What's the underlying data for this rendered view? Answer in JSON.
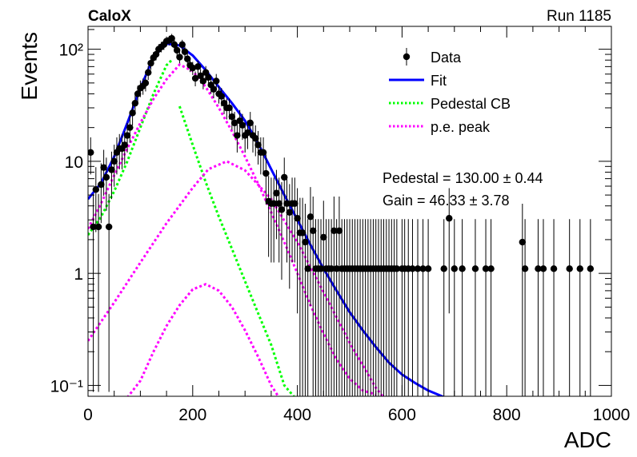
{
  "header": {
    "left": "CaloX",
    "right": "Run 1185"
  },
  "legend": {
    "items": [
      {
        "key": "data",
        "label": "Data",
        "color": "#000000",
        "style": "marker"
      },
      {
        "key": "fit",
        "label": "Fit",
        "color": "#0000ff",
        "style": "solid"
      },
      {
        "key": "ped",
        "label": "Pedestal CB",
        "color": "#00ff00",
        "style": "dotted"
      },
      {
        "key": "pe",
        "label": "p.e. peak",
        "color": "#ff00ff",
        "style": "dotted"
      }
    ],
    "placement": "top-right"
  },
  "fit_results": {
    "pedestal": "Pedestal = 130.00 ± 0.44",
    "gain": "Gain = 46.33 ± 3.78"
  },
  "chart_data": {
    "type": "scatter",
    "title": "",
    "xlabel": "ADC",
    "ylabel": "Events",
    "xlim": [
      0,
      1000
    ],
    "ylim": [
      0.08,
      160
    ],
    "yscale": "log",
    "xticks": [
      0,
      200,
      400,
      600,
      800,
      1000
    ],
    "yticks": [
      {
        "value": 0.1,
        "label": "10⁻¹"
      },
      {
        "value": 1,
        "label": "1"
      },
      {
        "value": 10,
        "label": "10"
      },
      {
        "value": 100,
        "label": "10²"
      }
    ],
    "grid": false,
    "series": [
      {
        "name": "Data",
        "kind": "points",
        "color": "#000000",
        "points": [
          [
            5,
            12
          ],
          [
            10,
            2.6
          ],
          [
            15,
            5.6
          ],
          [
            20,
            2.6
          ],
          [
            25,
            6.2
          ],
          [
            30,
            8.8
          ],
          [
            35,
            7.2
          ],
          [
            40,
            2.6
          ],
          [
            45,
            8.4
          ],
          [
            50,
            10
          ],
          [
            55,
            12
          ],
          [
            60,
            13
          ],
          [
            65,
            13
          ],
          [
            70,
            14
          ],
          [
            75,
            17
          ],
          [
            80,
            20
          ],
          [
            85,
            27
          ],
          [
            90,
            33
          ],
          [
            95,
            40
          ],
          [
            100,
            45
          ],
          [
            105,
            47
          ],
          [
            110,
            50
          ],
          [
            115,
            62
          ],
          [
            120,
            75
          ],
          [
            125,
            84
          ],
          [
            130,
            90
          ],
          [
            135,
            100
          ],
          [
            140,
            105
          ],
          [
            145,
            110
          ],
          [
            150,
            118
          ],
          [
            155,
            120
          ],
          [
            160,
            125
          ],
          [
            165,
            110
          ],
          [
            170,
            98
          ],
          [
            175,
            85
          ],
          [
            180,
            110
          ],
          [
            185,
            95
          ],
          [
            190,
            82
          ],
          [
            195,
            72
          ],
          [
            200,
            68
          ],
          [
            205,
            55
          ],
          [
            210,
            70
          ],
          [
            215,
            58
          ],
          [
            220,
            52
          ],
          [
            225,
            62
          ],
          [
            230,
            56
          ],
          [
            235,
            48
          ],
          [
            240,
            44
          ],
          [
            245,
            52
          ],
          [
            250,
            40
          ],
          [
            255,
            38
          ],
          [
            260,
            33
          ],
          [
            265,
            30
          ],
          [
            270,
            30
          ],
          [
            275,
            25
          ],
          [
            280,
            22
          ],
          [
            285,
            17
          ],
          [
            290,
            23
          ],
          [
            295,
            21
          ],
          [
            300,
            17
          ],
          [
            305,
            18
          ],
          [
            310,
            22
          ],
          [
            315,
            17
          ],
          [
            320,
            16
          ],
          [
            325,
            14
          ],
          [
            330,
            12
          ],
          [
            335,
            12
          ],
          [
            340,
            7.8
          ],
          [
            345,
            4.4
          ],
          [
            350,
            4.2
          ],
          [
            355,
            4.2
          ],
          [
            360,
            5.2
          ],
          [
            365,
            4.2
          ],
          [
            370,
            3.7
          ],
          [
            375,
            7.2
          ],
          [
            380,
            4.2
          ],
          [
            385,
            3.5
          ],
          [
            390,
            4.2
          ],
          [
            395,
            4.2
          ],
          [
            400,
            3.1
          ],
          [
            405,
            2.3
          ],
          [
            410,
            2.3
          ],
          [
            415,
            1.9
          ],
          [
            420,
            1.1
          ],
          [
            425,
            3.2
          ],
          [
            430,
            2.4
          ],
          [
            435,
            1.1
          ],
          [
            440,
            1.1
          ],
          [
            445,
            1.1
          ],
          [
            450,
            2.1
          ],
          [
            455,
            1.1
          ],
          [
            460,
            1.1
          ],
          [
            465,
            1.1
          ],
          [
            470,
            2.4
          ],
          [
            475,
            1.1
          ],
          [
            480,
            2.4
          ],
          [
            485,
            1.1
          ],
          [
            490,
            1.1
          ],
          [
            495,
            1.1
          ],
          [
            500,
            1.1
          ],
          [
            505,
            1.1
          ],
          [
            510,
            1.1
          ],
          [
            515,
            1.1
          ],
          [
            520,
            1.1
          ],
          [
            525,
            1.1
          ],
          [
            530,
            1.1
          ],
          [
            535,
            1.1
          ],
          [
            540,
            1.1
          ],
          [
            545,
            1.1
          ],
          [
            550,
            1.1
          ],
          [
            555,
            1.1
          ],
          [
            560,
            1.1
          ],
          [
            565,
            1.1
          ],
          [
            570,
            1.1
          ],
          [
            575,
            1.1
          ],
          [
            580,
            1.1
          ],
          [
            585,
            1.1
          ],
          [
            590,
            1.1
          ],
          [
            600,
            1.1
          ],
          [
            605,
            1.1
          ],
          [
            612,
            1.1
          ],
          [
            620,
            1.1
          ],
          [
            630,
            1.1
          ],
          [
            640,
            1.1
          ],
          [
            650,
            1.1
          ],
          [
            680,
            1.1
          ],
          [
            690,
            3.1
          ],
          [
            700,
            1.1
          ],
          [
            715,
            1.1
          ],
          [
            740,
            1.1
          ],
          [
            760,
            1.1
          ],
          [
            770,
            1.1
          ],
          [
            830,
            1.9
          ],
          [
            835,
            1.1
          ],
          [
            860,
            1.1
          ],
          [
            870,
            1.1
          ],
          [
            890,
            1.1
          ],
          [
            920,
            1.1
          ],
          [
            940,
            1.1
          ],
          [
            960,
            1.1
          ]
        ]
      },
      {
        "name": "Fit",
        "kind": "line",
        "color": "#0000ff",
        "points": [
          [
            0,
            4.6
          ],
          [
            25,
            6.4
          ],
          [
            50,
            11
          ],
          [
            75,
            22
          ],
          [
            100,
            45
          ],
          [
            125,
            85
          ],
          [
            150,
            112
          ],
          [
            175,
            108
          ],
          [
            200,
            88
          ],
          [
            225,
            65
          ],
          [
            250,
            46
          ],
          [
            275,
            33
          ],
          [
            300,
            23
          ],
          [
            325,
            14.5
          ],
          [
            350,
            8.5
          ],
          [
            375,
            5.0
          ],
          [
            400,
            3.0
          ],
          [
            425,
            1.8
          ],
          [
            450,
            1.1
          ],
          [
            475,
            0.7
          ],
          [
            500,
            0.45
          ],
          [
            525,
            0.31
          ],
          [
            550,
            0.22
          ],
          [
            575,
            0.16
          ],
          [
            600,
            0.125
          ],
          [
            625,
            0.105
          ],
          [
            650,
            0.09
          ],
          [
            682,
            0.078
          ]
        ]
      },
      {
        "name": "Pedestal CB",
        "kind": "line",
        "color": "#00ff00",
        "segments": [
          [
            [
              0,
              2.2
            ],
            [
              25,
              3.2
            ],
            [
              50,
              5.4
            ],
            [
              75,
              10
            ],
            [
              100,
              20
            ],
            [
              125,
              40
            ],
            [
              150,
              72
            ],
            [
              160,
              80
            ]
          ],
          [
            [
              175,
              31
            ],
            [
              200,
              14
            ],
            [
              225,
              6.5
            ],
            [
              250,
              3.2
            ],
            [
              275,
              1.65
            ],
            [
              300,
              0.85
            ],
            [
              325,
              0.44
            ],
            [
              350,
              0.23
            ],
            [
              375,
              0.1
            ],
            [
              395,
              0.078
            ]
          ]
        ]
      },
      {
        "name": "p.e. peak",
        "kind": "line",
        "color": "#ff00ff",
        "segments": [
          [
            [
              0,
              2.5
            ],
            [
              25,
              4.2
            ],
            [
              50,
              7.5
            ],
            [
              75,
              13
            ],
            [
              100,
              22
            ],
            [
              125,
              36
            ],
            [
              150,
              54
            ],
            [
              175,
              73
            ],
            [
              200,
              64
            ],
            [
              225,
              46
            ],
            [
              250,
              30
            ],
            [
              275,
              18.5
            ],
            [
              300,
              11
            ],
            [
              325,
              6.3
            ],
            [
              350,
              3.5
            ],
            [
              375,
              1.9
            ],
            [
              400,
              1.0
            ],
            [
              425,
              0.52
            ],
            [
              450,
              0.29
            ],
            [
              475,
              0.17
            ],
            [
              500,
              0.115
            ],
            [
              525,
              0.09
            ],
            [
              550,
              0.083
            ]
          ],
          [
            [
              0,
              0.25
            ],
            [
              50,
              0.55
            ],
            [
              100,
              1.25
            ],
            [
              150,
              2.8
            ],
            [
              200,
              5.8
            ],
            [
              230,
              8.5
            ],
            [
              265,
              10
            ],
            [
              300,
              8.3
            ],
            [
              350,
              4.6
            ],
            [
              400,
              1.9
            ],
            [
              450,
              0.68
            ],
            [
              500,
              0.24
            ],
            [
              550,
              0.095
            ],
            [
              565,
              0.078
            ]
          ],
          [
            [
              75,
              0.078
            ],
            [
              100,
              0.11
            ],
            [
              125,
              0.2
            ],
            [
              150,
              0.34
            ],
            [
              175,
              0.52
            ],
            [
              200,
              0.72
            ],
            [
              225,
              0.8
            ],
            [
              250,
              0.7
            ],
            [
              275,
              0.5
            ],
            [
              300,
              0.31
            ],
            [
              325,
              0.18
            ],
            [
              350,
              0.1
            ],
            [
              365,
              0.078
            ]
          ]
        ]
      }
    ]
  }
}
